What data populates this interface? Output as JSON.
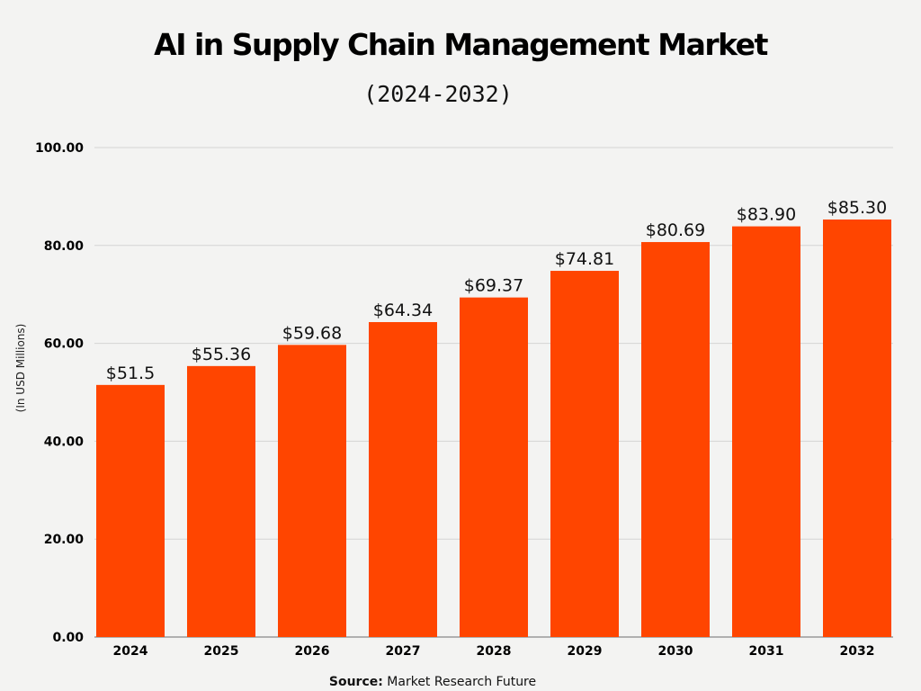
{
  "chart_data": {
    "type": "bar",
    "title": "AI in Supply Chain Management Market",
    "subtitle": "(2024-2032)",
    "ylabel": "(In USD Millions)",
    "xlabel": "",
    "categories": [
      "2024",
      "2025",
      "2026",
      "2027",
      "2028",
      "2029",
      "2030",
      "2031",
      "2032"
    ],
    "values": [
      51.5,
      55.36,
      59.68,
      64.34,
      69.37,
      74.81,
      80.69,
      83.9,
      85.3
    ],
    "data_labels": [
      "$51.5",
      "$55.36",
      "$59.68",
      "$64.34",
      "$69.37",
      "$74.81",
      "$80.69",
      "$83.90",
      "$85.30"
    ],
    "ylim": [
      0,
      100
    ],
    "yticks": [
      "0.00",
      "20.00",
      "40.00",
      "60.00",
      "80.00",
      "100.00"
    ],
    "grid": true,
    "bar_color": "#FF4500"
  },
  "source": {
    "label": "Source:",
    "text": "Market Research Future"
  }
}
